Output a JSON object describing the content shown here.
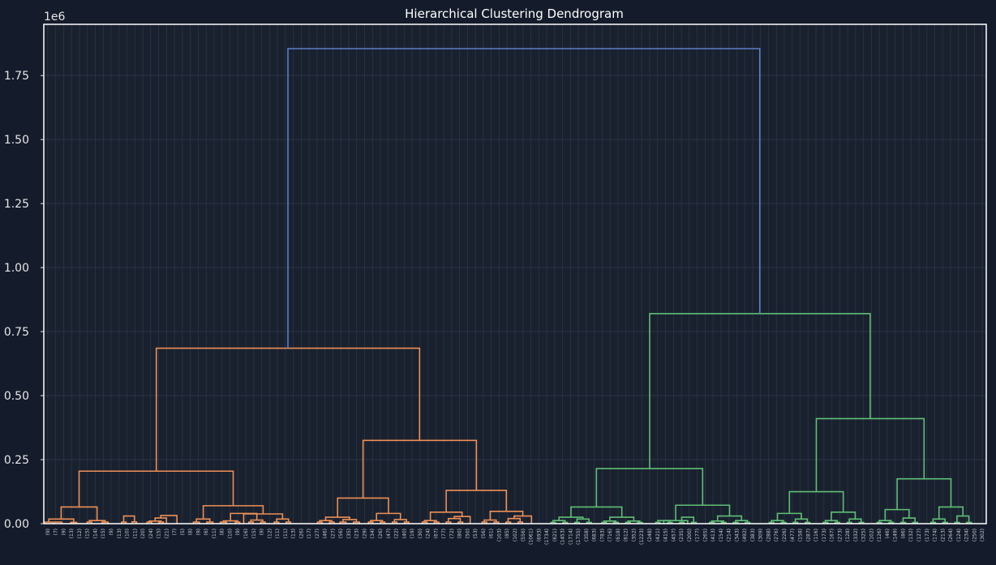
{
  "chart_data": {
    "type": "dendrogram",
    "title": "Hierarchical Clustering Dendrogram",
    "y_offset_label": "1e6",
    "ylim": [
      0,
      1.95
    ],
    "y_ticks": [
      {
        "value": 0.0,
        "label": "0.00"
      },
      {
        "value": 0.25,
        "label": "0.25"
      },
      {
        "value": 0.5,
        "label": "0.50"
      },
      {
        "value": 0.75,
        "label": "0.75"
      },
      {
        "value": 1.0,
        "label": "1.00"
      },
      {
        "value": 1.25,
        "label": "1.25"
      },
      {
        "value": 1.5,
        "label": "1.50"
      },
      {
        "value": 1.75,
        "label": "1.75"
      }
    ],
    "grid": true,
    "colors": {
      "background": "#141c2b",
      "axes_bg": "#19212f",
      "grid": "#2c3545",
      "frame": "#ffffff",
      "root": "#5b7fc6",
      "cluster_a": "#ee8f55",
      "cluster_b": "#5fbf74"
    },
    "leaf_labels": [
      "(9)",
      "(7)",
      "(9)",
      "(13)",
      "(12)",
      "(15)",
      "(14)",
      "(15)",
      "(9)",
      "(13)",
      "(10)",
      "(11)",
      "(20)",
      "(24)",
      "(15)",
      "(21)",
      "(7)",
      "(5)",
      "(8)",
      "(9)",
      "(6)",
      "(11)",
      "(8)",
      "(10)",
      "(9)",
      "(16)",
      "(15)",
      "(9)",
      "(12)",
      "(11)",
      "(11)",
      "(13)",
      "(26)",
      "(17)",
      "(27)",
      "(46)",
      "(27)",
      "(56)",
      "(35)",
      "(23)",
      "(29)",
      "(34)",
      "(26)",
      "(47)",
      "(22)",
      "(40)",
      "(19)",
      "(30)",
      "(24)",
      "(67)",
      "(77)",
      "(72)",
      "(80)",
      "(50)",
      "(53)",
      "(56)",
      "(61)",
      "(103)",
      "(85)",
      "(102)",
      "(556)",
      "(1061)",
      "(693)",
      "(1734)",
      "(621)",
      "(1453)",
      "(1714)",
      "(1755)",
      "(358)",
      "(683)",
      "(783)",
      "(716)",
      "(618)",
      "(612)",
      "(352)",
      "(1223)",
      "(248)",
      "(421)",
      "(415)",
      "(457)",
      "(235)",
      "(200)",
      "(177)",
      "(265)",
      "(413)",
      "(154)",
      "(214)",
      "(343)",
      "(492)",
      "(383)",
      "(309)",
      "(288)",
      "(276)",
      "(226)",
      "(477)",
      "(158)",
      "(287)",
      "(116)",
      "(173)",
      "(167)",
      "(273)",
      "(128)",
      "(332)",
      "(325)",
      "(102)",
      "(126)",
      "(46)",
      "(149)",
      "(86)",
      "(132)",
      "(127)",
      "(173)",
      "(174)",
      "(213)",
      "(264)",
      "(124)",
      "(234)",
      "(250)",
      "(302)"
    ],
    "links": [
      {
        "color": "cluster_a",
        "x1": 0.04,
        "x2": 0.3,
        "y": 0.006
      },
      {
        "color": "cluster_a",
        "x1": 0.35,
        "x2": 0.6,
        "y": 0.006
      },
      {
        "color": "cluster_a",
        "x1": 0.9,
        "x2": 1.1,
        "y": 0.005
      },
      {
        "color": "cluster_a",
        "x1": 0.17,
        "x2": 1.0,
        "y": 0.018
      },
      {
        "color": "cluster_a",
        "x1": 1.45,
        "x2": 1.6,
        "y": 0.006
      },
      {
        "color": "cluster_a",
        "x1": 1.95,
        "x2": 2.15,
        "y": 0.006
      },
      {
        "color": "cluster_a",
        "x1": 1.52,
        "x2": 2.05,
        "y": 0.012
      },
      {
        "color": "cluster_a",
        "x1": 2.6,
        "x2": 2.75,
        "y": 0.006
      },
      {
        "color": "cluster_a",
        "x1": 2.95,
        "x2": 3.1,
        "y": 0.007
      },
      {
        "color": "cluster_a",
        "x1": 2.67,
        "x2": 3.03,
        "y": 0.03
      },
      {
        "color": "cluster_a",
        "x1": 3.45,
        "x2": 3.6,
        "y": 0.006
      },
      {
        "color": "cluster_a",
        "x1": 3.85,
        "x2": 4.0,
        "y": 0.006
      },
      {
        "color": "cluster_a",
        "x1": 3.52,
        "x2": 3.92,
        "y": 0.01
      },
      {
        "color": "cluster_a",
        "x1": 3.72,
        "x2": 4.1,
        "y": 0.022
      },
      {
        "color": "cluster_a",
        "x1": 3.91,
        "x2": 4.45,
        "y": 0.032
      },
      {
        "color": "cluster_a",
        "x1": 0.58,
        "x2": 1.78,
        "y": 0.065
      },
      {
        "color": "cluster_a",
        "x1": 5.0,
        "x2": 5.2,
        "y": 0.006
      },
      {
        "color": "cluster_a",
        "x1": 5.45,
        "x2": 5.65,
        "y": 0.006
      },
      {
        "color": "cluster_a",
        "x1": 5.1,
        "x2": 5.55,
        "y": 0.018
      },
      {
        "color": "cluster_a",
        "x1": 5.9,
        "x2": 6.1,
        "y": 0.006
      },
      {
        "color": "cluster_a",
        "x1": 6.4,
        "x2": 6.55,
        "y": 0.006
      },
      {
        "color": "cluster_a",
        "x1": 6.0,
        "x2": 6.48,
        "y": 0.011
      },
      {
        "color": "cluster_a",
        "x1": 6.85,
        "x2": 7.0,
        "y": 0.006
      },
      {
        "color": "cluster_a",
        "x1": 7.25,
        "x2": 7.4,
        "y": 0.006
      },
      {
        "color": "cluster_a",
        "x1": 6.92,
        "x2": 7.32,
        "y": 0.014
      },
      {
        "color": "cluster_a",
        "x1": 6.24,
        "x2": 7.12,
        "y": 0.04
      },
      {
        "color": "cluster_a",
        "x1": 7.7,
        "x2": 7.85,
        "y": 0.006
      },
      {
        "color": "cluster_a",
        "x1": 8.1,
        "x2": 8.25,
        "y": 0.006
      },
      {
        "color": "cluster_a",
        "x1": 7.78,
        "x2": 8.18,
        "y": 0.018
      },
      {
        "color": "cluster_a",
        "x1": 6.68,
        "x2": 7.98,
        "y": 0.038
      },
      {
        "color": "cluster_a",
        "x1": 5.33,
        "x2": 7.33,
        "y": 0.07
      },
      {
        "color": "cluster_a",
        "x1": 1.18,
        "x2": 6.33,
        "y": 0.205
      },
      {
        "color": "cluster_a",
        "x1": 9.15,
        "x2": 9.3,
        "y": 0.006
      },
      {
        "color": "cluster_a",
        "x1": 9.55,
        "x2": 9.7,
        "y": 0.006
      },
      {
        "color": "cluster_a",
        "x1": 9.22,
        "x2": 9.62,
        "y": 0.012
      },
      {
        "color": "cluster_a",
        "x1": 9.9,
        "x2": 10.1,
        "y": 0.006
      },
      {
        "color": "cluster_a",
        "x1": 10.35,
        "x2": 10.55,
        "y": 0.006
      },
      {
        "color": "cluster_a",
        "x1": 10.0,
        "x2": 10.45,
        "y": 0.016
      },
      {
        "color": "cluster_a",
        "x1": 9.42,
        "x2": 10.22,
        "y": 0.025
      },
      {
        "color": "cluster_a",
        "x1": 10.85,
        "x2": 11.0,
        "y": 0.006
      },
      {
        "color": "cluster_a",
        "x1": 11.25,
        "x2": 11.4,
        "y": 0.006
      },
      {
        "color": "cluster_a",
        "x1": 10.92,
        "x2": 11.32,
        "y": 0.012
      },
      {
        "color": "cluster_a",
        "x1": 11.65,
        "x2": 11.8,
        "y": 0.006
      },
      {
        "color": "cluster_a",
        "x1": 12.05,
        "x2": 12.2,
        "y": 0.006
      },
      {
        "color": "cluster_a",
        "x1": 11.72,
        "x2": 12.12,
        "y": 0.016
      },
      {
        "color": "cluster_a",
        "x1": 11.12,
        "x2": 11.92,
        "y": 0.04
      },
      {
        "color": "cluster_a",
        "x1": 9.82,
        "x2": 11.52,
        "y": 0.1
      },
      {
        "color": "cluster_a",
        "x1": 12.65,
        "x2": 12.8,
        "y": 0.006
      },
      {
        "color": "cluster_a",
        "x1": 13.05,
        "x2": 13.2,
        "y": 0.006
      },
      {
        "color": "cluster_a",
        "x1": 12.72,
        "x2": 13.12,
        "y": 0.012
      },
      {
        "color": "cluster_a",
        "x1": 13.45,
        "x2": 13.6,
        "y": 0.006
      },
      {
        "color": "cluster_a",
        "x1": 13.85,
        "x2": 14.0,
        "y": 0.006
      },
      {
        "color": "cluster_a",
        "x1": 13.52,
        "x2": 13.92,
        "y": 0.02
      },
      {
        "color": "cluster_a",
        "x1": 13.72,
        "x2": 14.25,
        "y": 0.028
      },
      {
        "color": "cluster_a",
        "x1": 12.92,
        "x2": 13.98,
        "y": 0.045
      },
      {
        "color": "cluster_a",
        "x1": 14.65,
        "x2": 14.8,
        "y": 0.006
      },
      {
        "color": "cluster_a",
        "x1": 15.05,
        "x2": 15.2,
        "y": 0.006
      },
      {
        "color": "cluster_a",
        "x1": 14.72,
        "x2": 15.12,
        "y": 0.014
      },
      {
        "color": "cluster_a",
        "x1": 15.45,
        "x2": 15.6,
        "y": 0.006
      },
      {
        "color": "cluster_a",
        "x1": 15.85,
        "x2": 16.0,
        "y": 0.006
      },
      {
        "color": "cluster_a",
        "x1": 15.52,
        "x2": 15.92,
        "y": 0.02
      },
      {
        "color": "cluster_a",
        "x1": 15.72,
        "x2": 16.3,
        "y": 0.03
      },
      {
        "color": "cluster_a",
        "x1": 14.92,
        "x2": 16.01,
        "y": 0.048
      },
      {
        "color": "cluster_a",
        "x1": 13.45,
        "x2": 15.46,
        "y": 0.13
      },
      {
        "color": "cluster_a",
        "x1": 10.67,
        "x2": 14.46,
        "y": 0.325
      },
      {
        "color": "cluster_a",
        "x1": 3.76,
        "x2": 12.56,
        "y": 0.685
      },
      {
        "color": "cluster_b",
        "x1": 16.95,
        "x2": 17.1,
        "y": 0.005
      },
      {
        "color": "cluster_b",
        "x1": 17.35,
        "x2": 17.5,
        "y": 0.005
      },
      {
        "color": "cluster_b",
        "x1": 17.02,
        "x2": 17.42,
        "y": 0.012
      },
      {
        "color": "cluster_b",
        "x1": 17.75,
        "x2": 17.9,
        "y": 0.005
      },
      {
        "color": "cluster_b",
        "x1": 18.15,
        "x2": 18.3,
        "y": 0.005
      },
      {
        "color": "cluster_b",
        "x1": 17.82,
        "x2": 18.22,
        "y": 0.018
      },
      {
        "color": "cluster_b",
        "x1": 17.22,
        "x2": 18.02,
        "y": 0.025
      },
      {
        "color": "cluster_b",
        "x1": 18.65,
        "x2": 18.8,
        "y": 0.005
      },
      {
        "color": "cluster_b",
        "x1": 19.05,
        "x2": 19.2,
        "y": 0.005
      },
      {
        "color": "cluster_b",
        "x1": 18.72,
        "x2": 19.12,
        "y": 0.01
      },
      {
        "color": "cluster_b",
        "x1": 19.45,
        "x2": 19.6,
        "y": 0.005
      },
      {
        "color": "cluster_b",
        "x1": 19.85,
        "x2": 20.0,
        "y": 0.005
      },
      {
        "color": "cluster_b",
        "x1": 19.52,
        "x2": 19.92,
        "y": 0.01
      },
      {
        "color": "cluster_b",
        "x1": 18.92,
        "x2": 19.72,
        "y": 0.025
      },
      {
        "color": "cluster_b",
        "x1": 17.62,
        "x2": 19.32,
        "y": 0.065
      },
      {
        "color": "cluster_b",
        "x1": 20.45,
        "x2": 20.6,
        "y": 0.005
      },
      {
        "color": "cluster_b",
        "x1": 20.85,
        "x2": 21.0,
        "y": 0.005
      },
      {
        "color": "cluster_b",
        "x1": 20.52,
        "x2": 20.92,
        "y": 0.012
      },
      {
        "color": "cluster_b",
        "x1": 21.25,
        "x2": 21.4,
        "y": 0.005
      },
      {
        "color": "cluster_b",
        "x1": 21.65,
        "x2": 21.8,
        "y": 0.005
      },
      {
        "color": "cluster_b",
        "x1": 21.32,
        "x2": 21.72,
        "y": 0.025
      },
      {
        "color": "cluster_b",
        "x1": 20.72,
        "x2": 21.52,
        "y": 0.012
      },
      {
        "color": "cluster_b",
        "x1": 22.25,
        "x2": 22.4,
        "y": 0.005
      },
      {
        "color": "cluster_b",
        "x1": 22.65,
        "x2": 22.8,
        "y": 0.005
      },
      {
        "color": "cluster_b",
        "x1": 22.32,
        "x2": 22.72,
        "y": 0.01
      },
      {
        "color": "cluster_b",
        "x1": 23.05,
        "x2": 23.2,
        "y": 0.005
      },
      {
        "color": "cluster_b",
        "x1": 23.45,
        "x2": 23.6,
        "y": 0.005
      },
      {
        "color": "cluster_b",
        "x1": 23.12,
        "x2": 23.52,
        "y": 0.012
      },
      {
        "color": "cluster_b",
        "x1": 22.52,
        "x2": 23.32,
        "y": 0.03
      },
      {
        "color": "cluster_b",
        "x1": 21.12,
        "x2": 22.92,
        "y": 0.072
      },
      {
        "color": "cluster_b",
        "x1": 18.47,
        "x2": 22.02,
        "y": 0.215
      },
      {
        "color": "cluster_b",
        "x1": 24.25,
        "x2": 24.4,
        "y": 0.005
      },
      {
        "color": "cluster_b",
        "x1": 24.65,
        "x2": 24.8,
        "y": 0.005
      },
      {
        "color": "cluster_b",
        "x1": 24.32,
        "x2": 24.72,
        "y": 0.012
      },
      {
        "color": "cluster_b",
        "x1": 25.05,
        "x2": 25.2,
        "y": 0.005
      },
      {
        "color": "cluster_b",
        "x1": 25.45,
        "x2": 25.6,
        "y": 0.005
      },
      {
        "color": "cluster_b",
        "x1": 25.12,
        "x2": 25.52,
        "y": 0.018
      },
      {
        "color": "cluster_b",
        "x1": 24.52,
        "x2": 25.32,
        "y": 0.04
      },
      {
        "color": "cluster_b",
        "x1": 26.05,
        "x2": 26.2,
        "y": 0.005
      },
      {
        "color": "cluster_b",
        "x1": 26.45,
        "x2": 26.6,
        "y": 0.005
      },
      {
        "color": "cluster_b",
        "x1": 26.12,
        "x2": 26.52,
        "y": 0.012
      },
      {
        "color": "cluster_b",
        "x1": 26.85,
        "x2": 27.0,
        "y": 0.005
      },
      {
        "color": "cluster_b",
        "x1": 27.25,
        "x2": 27.4,
        "y": 0.005
      },
      {
        "color": "cluster_b",
        "x1": 26.92,
        "x2": 27.32,
        "y": 0.018
      },
      {
        "color": "cluster_b",
        "x1": 26.32,
        "x2": 27.12,
        "y": 0.045
      },
      {
        "color": "cluster_b",
        "x1": 24.92,
        "x2": 26.72,
        "y": 0.125
      },
      {
        "color": "cluster_b",
        "x1": 27.85,
        "x2": 28.0,
        "y": 0.005
      },
      {
        "color": "cluster_b",
        "x1": 28.25,
        "x2": 28.4,
        "y": 0.005
      },
      {
        "color": "cluster_b",
        "x1": 27.92,
        "x2": 28.32,
        "y": 0.012
      },
      {
        "color": "cluster_b",
        "x1": 28.65,
        "x2": 28.8,
        "y": 0.005
      },
      {
        "color": "cluster_b",
        "x1": 29.05,
        "x2": 29.2,
        "y": 0.005
      },
      {
        "color": "cluster_b",
        "x1": 28.72,
        "x2": 29.12,
        "y": 0.022
      },
      {
        "color": "cluster_b",
        "x1": 28.12,
        "x2": 28.92,
        "y": 0.055
      },
      {
        "color": "cluster_b",
        "x1": 29.65,
        "x2": 29.8,
        "y": 0.005
      },
      {
        "color": "cluster_b",
        "x1": 30.05,
        "x2": 30.2,
        "y": 0.005
      },
      {
        "color": "cluster_b",
        "x1": 29.72,
        "x2": 30.12,
        "y": 0.018
      },
      {
        "color": "cluster_b",
        "x1": 30.45,
        "x2": 30.6,
        "y": 0.005
      },
      {
        "color": "cluster_b",
        "x1": 30.85,
        "x2": 31.0,
        "y": 0.005
      },
      {
        "color": "cluster_b",
        "x1": 30.52,
        "x2": 30.92,
        "y": 0.03
      },
      {
        "color": "cluster_b",
        "x1": 29.92,
        "x2": 30.72,
        "y": 0.065
      },
      {
        "color": "cluster_b",
        "x1": 28.52,
        "x2": 30.32,
        "y": 0.175
      },
      {
        "color": "cluster_b",
        "x1": 25.82,
        "x2": 29.42,
        "y": 0.41
      },
      {
        "color": "cluster_b",
        "x1": 20.25,
        "x2": 27.62,
        "y": 0.82
      },
      {
        "color": "root",
        "x1": 8.16,
        "x2": 23.93,
        "y": 1.855
      }
    ]
  }
}
